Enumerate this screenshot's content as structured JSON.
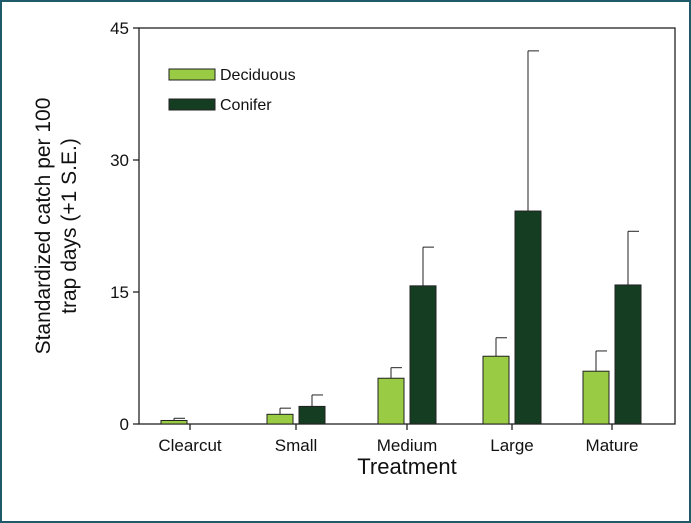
{
  "chart_data": {
    "type": "bar",
    "title": "",
    "xlabel": "Treatment",
    "ylabel_lines": [
      "Standardized catch per 100",
      "trap days (+1 S.E.)"
    ],
    "categories": [
      "Clearcut",
      "Small",
      "Medium",
      "Large",
      "Mature"
    ],
    "ylim": [
      0,
      45
    ],
    "yticks": [
      "0",
      "15",
      "30",
      "45"
    ],
    "grid": false,
    "legend_position": "top-left",
    "series": [
      {
        "name": "Deciduous",
        "color": "#99cc44",
        "values": [
          0.4,
          1.1,
          5.2,
          7.7,
          6.0
        ],
        "se": [
          0.25,
          0.7,
          1.2,
          2.1,
          2.3
        ]
      },
      {
        "name": "Conifer",
        "color": "#143d22",
        "values": [
          0,
          2.0,
          15.7,
          24.2,
          15.8
        ],
        "se": [
          0,
          1.3,
          4.4,
          18.2,
          6.1
        ]
      }
    ]
  }
}
